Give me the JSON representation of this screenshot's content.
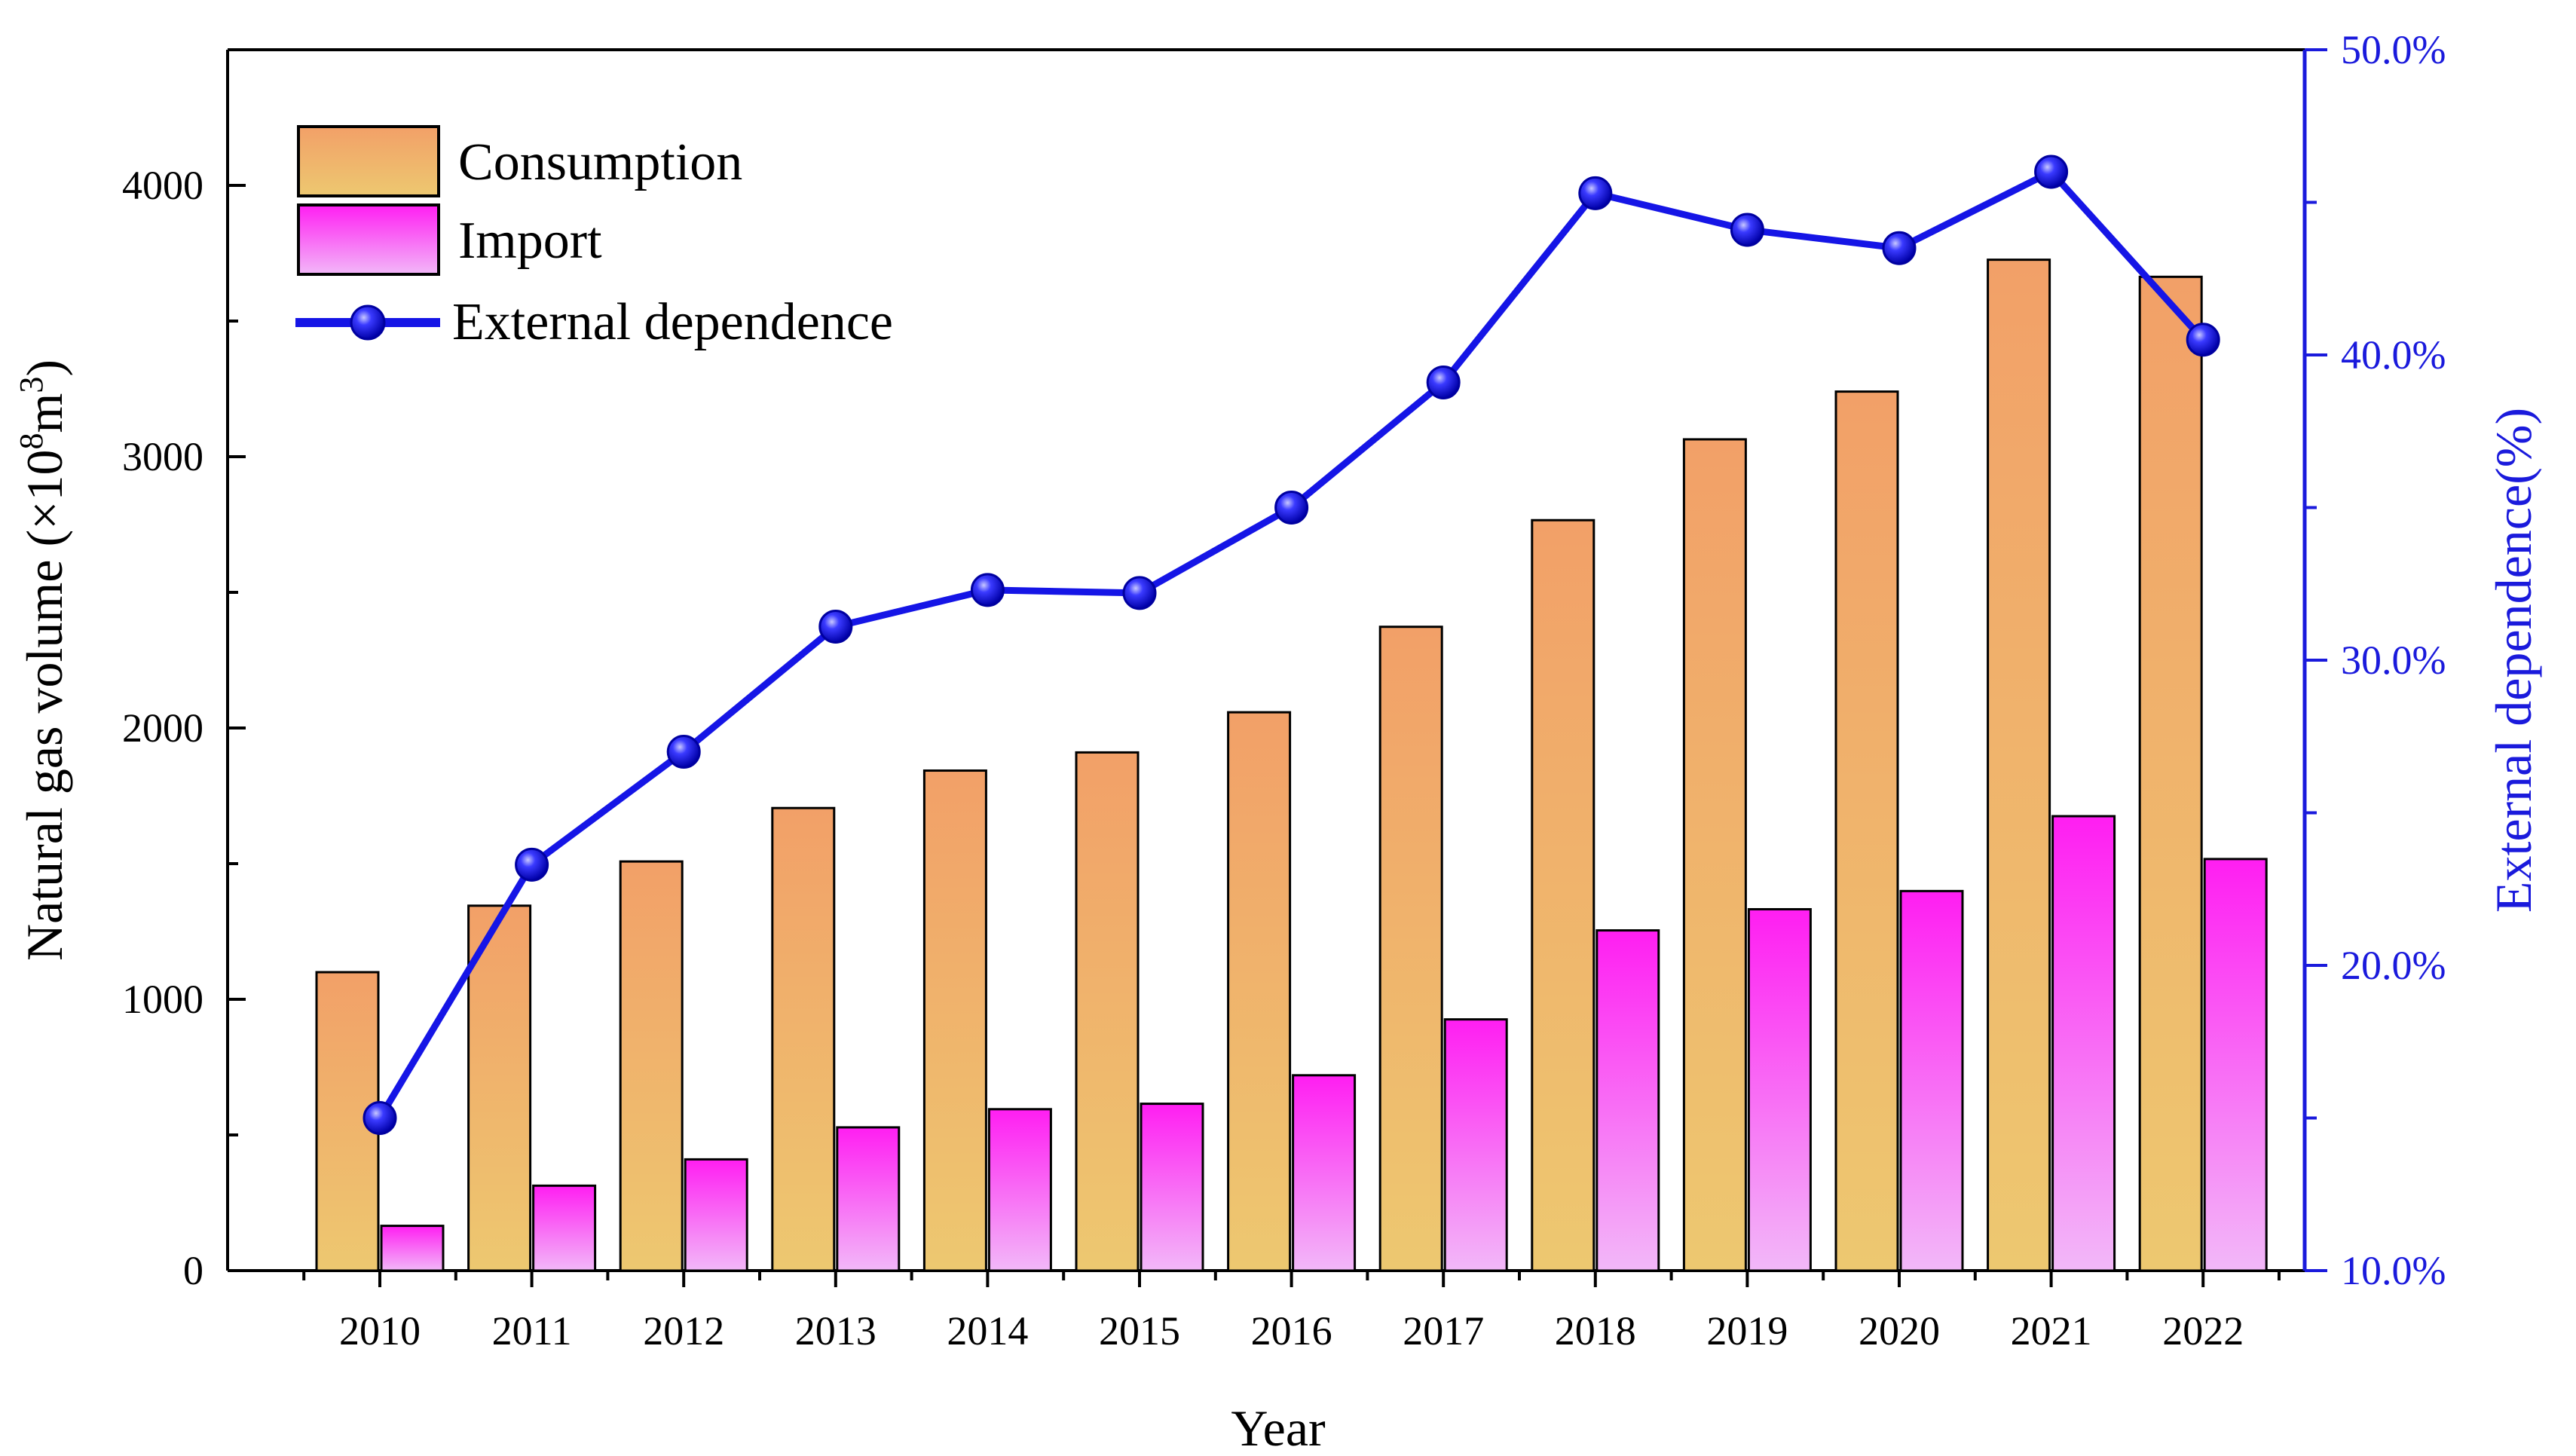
{
  "chart_data": {
    "type": "bar",
    "categories": [
      "2010",
      "2011",
      "2012",
      "2013",
      "2014",
      "2015",
      "2016",
      "2017",
      "2018",
      "2019",
      "2020",
      "2021",
      "2022"
    ],
    "series": [
      {
        "name": "Consumption",
        "kind": "bar",
        "axis": "left",
        "values": [
          1100,
          1345,
          1508,
          1705,
          1843,
          1910,
          2058,
          2373,
          2766,
          3064,
          3240,
          3726,
          3663
        ]
      },
      {
        "name": "Import",
        "kind": "bar",
        "axis": "left",
        "values": [
          165,
          313,
          410,
          528,
          595,
          615,
          720,
          926,
          1254,
          1332,
          1399,
          1675,
          1517
        ]
      },
      {
        "name": "External dependence",
        "kind": "line",
        "axis": "right",
        "values": [
          15.0,
          23.3,
          27.0,
          31.1,
          32.3,
          32.2,
          35.0,
          39.1,
          45.3,
          44.1,
          43.5,
          46.0,
          40.5
        ]
      }
    ],
    "xlabel": "Year",
    "ylabel": "Natural gas volume (×10",
    "ylabel_sup1": "8",
    "ylabel_mid": "m",
    "ylabel_sup2": "3",
    "ylabel_end": ")",
    "y2label": "External dependence(%)",
    "ylim": [
      0,
      4500
    ],
    "y2lim": [
      10,
      50
    ],
    "yticks": [
      0,
      1000,
      2000,
      3000,
      4000
    ],
    "y2ticks": [
      10,
      20,
      30,
      40,
      50
    ],
    "y2tick_labels": [
      "10.0%",
      "20.0%",
      "30.0%",
      "40.0%",
      "50.0%"
    ],
    "legend": [
      "Consumption",
      "Import",
      "External dependence"
    ],
    "legend_position": "top-left",
    "colors": {
      "consumption_top": "#f2a068",
      "consumption_bottom": "#edc870",
      "import_top": "#ff1ef2",
      "import_bottom": "#f2b8f8",
      "line": "#1515e6",
      "right_axis": "#1a1adc"
    }
  }
}
